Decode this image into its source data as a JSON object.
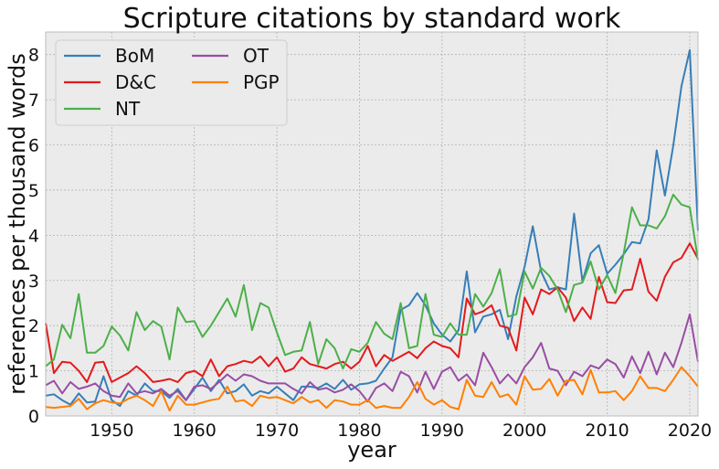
{
  "chart_data": {
    "type": "line",
    "title": "Scripture citations by standard work",
    "xlabel": "year",
    "ylabel": "references per thousand words",
    "xlim": [
      1942,
      2021
    ],
    "ylim": [
      0,
      8.5
    ],
    "xticks": [
      1950,
      1960,
      1970,
      1980,
      1990,
      2000,
      2010,
      2020
    ],
    "yticks": [
      0,
      1,
      2,
      3,
      4,
      5,
      6,
      7,
      8
    ],
    "grid": true,
    "legend": "top-left, two columns",
    "x": [
      1942,
      1943,
      1944,
      1945,
      1946,
      1947,
      1948,
      1949,
      1950,
      1951,
      1952,
      1953,
      1954,
      1955,
      1956,
      1957,
      1958,
      1959,
      1960,
      1961,
      1962,
      1963,
      1964,
      1965,
      1966,
      1967,
      1968,
      1969,
      1970,
      1971,
      1972,
      1973,
      1974,
      1975,
      1976,
      1977,
      1978,
      1979,
      1980,
      1981,
      1982,
      1983,
      1984,
      1985,
      1986,
      1987,
      1988,
      1989,
      1990,
      1991,
      1992,
      1993,
      1994,
      1995,
      1996,
      1997,
      1998,
      1999,
      2000,
      2001,
      2002,
      2003,
      2004,
      2005,
      2006,
      2007,
      2008,
      2009,
      2010,
      2011,
      2012,
      2013,
      2014,
      2015,
      2016,
      2017,
      2018,
      2019,
      2020,
      2021
    ],
    "series": [
      {
        "name": "BoM",
        "color": "#377eb8",
        "values": [
          0.45,
          0.48,
          0.35,
          0.25,
          0.5,
          0.3,
          0.32,
          0.88,
          0.35,
          0.22,
          0.55,
          0.45,
          0.72,
          0.55,
          0.55,
          0.4,
          0.6,
          0.35,
          0.6,
          0.85,
          0.55,
          0.8,
          0.5,
          0.55,
          0.7,
          0.45,
          0.55,
          0.5,
          0.65,
          0.5,
          0.35,
          0.65,
          0.65,
          0.62,
          0.72,
          0.6,
          0.8,
          0.58,
          0.7,
          0.72,
          0.78,
          1.05,
          1.3,
          2.35,
          2.45,
          2.72,
          2.45,
          2.05,
          1.8,
          1.65,
          1.9,
          3.2,
          1.85,
          2.2,
          2.25,
          2.35,
          1.7,
          2.65,
          3.3,
          4.2,
          3.2,
          2.8,
          2.85,
          2.8,
          4.48,
          2.98,
          3.6,
          3.78,
          3.15,
          3.35,
          3.58,
          3.85,
          3.82,
          4.35,
          5.88,
          4.88,
          5.98,
          7.3,
          8.1,
          4.1
        ]
      },
      {
        "name": "D&C",
        "color": "#e41a1c",
        "values": [
          2.05,
          0.95,
          1.2,
          1.18,
          1.0,
          0.75,
          1.18,
          1.2,
          0.75,
          0.85,
          0.95,
          1.1,
          0.95,
          0.75,
          0.78,
          0.82,
          0.75,
          0.95,
          1.0,
          0.88,
          1.25,
          0.88,
          1.1,
          1.15,
          1.22,
          1.18,
          1.32,
          1.1,
          1.3,
          0.98,
          1.05,
          1.3,
          1.15,
          1.1,
          1.05,
          1.15,
          1.2,
          1.05,
          1.2,
          1.55,
          1.1,
          1.35,
          1.22,
          1.32,
          1.42,
          1.28,
          1.5,
          1.65,
          1.55,
          1.5,
          1.3,
          2.6,
          2.25,
          2.32,
          2.45,
          2.0,
          1.95,
          1.45,
          2.62,
          2.25,
          2.8,
          2.7,
          2.85,
          2.62,
          2.1,
          2.4,
          2.15,
          3.08,
          2.52,
          2.5,
          2.78,
          2.8,
          3.48,
          2.75,
          2.55,
          3.08,
          3.4,
          3.5,
          3.82,
          3.48
        ]
      },
      {
        "name": "NT",
        "color": "#4daf4a",
        "values": [
          1.1,
          1.25,
          2.02,
          1.72,
          2.7,
          1.4,
          1.4,
          1.55,
          1.98,
          1.78,
          1.45,
          2.3,
          1.9,
          2.1,
          1.98,
          1.25,
          2.4,
          2.08,
          2.1,
          1.75,
          2.0,
          2.3,
          2.6,
          2.2,
          2.9,
          1.9,
          2.5,
          2.4,
          1.85,
          1.35,
          1.42,
          1.45,
          2.08,
          1.15,
          1.7,
          1.5,
          1.05,
          1.48,
          1.42,
          1.62,
          2.08,
          1.82,
          1.7,
          2.5,
          1.5,
          1.55,
          2.7,
          1.8,
          1.75,
          2.05,
          1.8,
          1.8,
          2.7,
          2.42,
          2.72,
          3.25,
          2.2,
          2.25,
          3.2,
          2.82,
          3.28,
          3.1,
          2.8,
          2.3,
          2.9,
          2.95,
          3.42,
          2.8,
          3.12,
          2.72,
          3.6,
          4.62,
          4.22,
          4.22,
          4.15,
          4.42,
          4.9,
          4.68,
          4.62,
          3.45
        ]
      },
      {
        "name": "OT",
        "color": "#984ea3",
        "values": [
          0.68,
          0.78,
          0.5,
          0.75,
          0.6,
          0.65,
          0.72,
          0.55,
          0.45,
          0.42,
          0.72,
          0.5,
          0.55,
          0.5,
          0.6,
          0.45,
          0.55,
          0.35,
          0.65,
          0.68,
          0.6,
          0.75,
          0.92,
          0.78,
          0.92,
          0.88,
          0.78,
          0.72,
          0.72,
          0.72,
          0.6,
          0.5,
          0.75,
          0.58,
          0.62,
          0.52,
          0.58,
          0.7,
          0.55,
          0.32,
          0.62,
          0.72,
          0.55,
          0.98,
          0.88,
          0.52,
          0.98,
          0.6,
          0.98,
          1.08,
          0.78,
          0.92,
          0.68,
          1.4,
          1.08,
          0.72,
          0.92,
          0.72,
          1.08,
          1.3,
          1.62,
          1.05,
          1.0,
          0.68,
          0.98,
          0.88,
          1.12,
          1.05,
          1.25,
          1.15,
          0.85,
          1.32,
          0.95,
          1.42,
          0.92,
          1.4,
          1.08,
          1.62,
          2.25,
          1.2
        ]
      },
      {
        "name": "PGP",
        "color": "#ff7f00",
        "values": [
          0.2,
          0.18,
          0.2,
          0.22,
          0.38,
          0.15,
          0.28,
          0.35,
          0.3,
          0.28,
          0.38,
          0.45,
          0.35,
          0.22,
          0.55,
          0.12,
          0.45,
          0.25,
          0.25,
          0.3,
          0.35,
          0.38,
          0.65,
          0.32,
          0.35,
          0.22,
          0.45,
          0.4,
          0.42,
          0.35,
          0.28,
          0.42,
          0.3,
          0.35,
          0.18,
          0.35,
          0.32,
          0.25,
          0.25,
          0.35,
          0.18,
          0.22,
          0.18,
          0.18,
          0.42,
          0.75,
          0.38,
          0.25,
          0.35,
          0.2,
          0.15,
          0.8,
          0.45,
          0.42,
          0.75,
          0.42,
          0.48,
          0.25,
          0.88,
          0.58,
          0.6,
          0.82,
          0.45,
          0.78,
          0.8,
          0.48,
          1.02,
          0.52,
          0.52,
          0.55,
          0.35,
          0.55,
          0.88,
          0.62,
          0.62,
          0.55,
          0.8,
          1.08,
          0.88,
          0.65
        ]
      }
    ]
  }
}
